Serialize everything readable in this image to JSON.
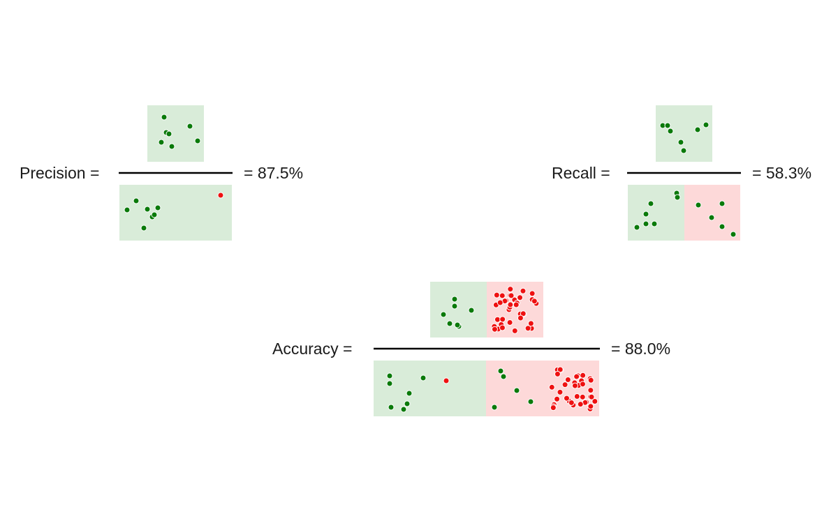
{
  "colors": {
    "true_bg": "#d9ecd9",
    "false_bg": "#fdd9d9",
    "green_dot": "#0a7a0a",
    "red_dot": "#ee1111",
    "rule": "#000000"
  },
  "precision": {
    "label": "Precision =",
    "result": "= 87.5%",
    "numerator": [
      {
        "color": "green",
        "count": 7
      }
    ],
    "denominator": [
      {
        "color": "green",
        "count": 7
      },
      {
        "color": "red",
        "count": 1
      }
    ]
  },
  "recall": {
    "label": "Recall =",
    "result": "= 58.3%",
    "numerator": [
      {
        "color": "green",
        "count": 7
      }
    ],
    "denominator": [
      {
        "color": "green",
        "count": 7
      },
      {
        "color": "green",
        "count": 5
      }
    ]
  },
  "accuracy": {
    "label": "Accuracy =",
    "result": "= 88.0%",
    "numerator": [
      {
        "color": "green",
        "count": 7
      },
      {
        "color": "red",
        "count": 37
      }
    ],
    "denominator": [
      {
        "color": "green",
        "count": 7
      },
      {
        "color": "red",
        "count": 1
      },
      {
        "color": "green",
        "count": 5
      },
      {
        "color": "red",
        "count": 37
      }
    ]
  }
}
